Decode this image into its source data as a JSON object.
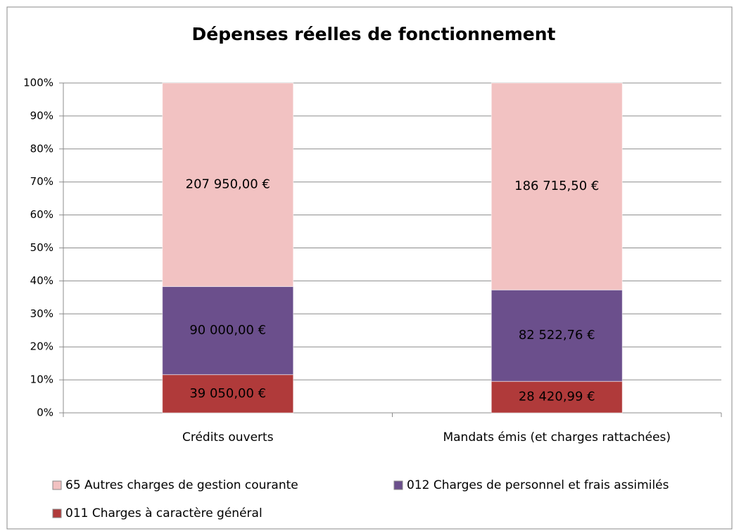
{
  "chart_data": {
    "type": "bar",
    "stacking": "percent",
    "title": "Dépenses réelles de fonctionnement",
    "categories": [
      "Crédits ouverts",
      "Mandats émis (et charges rattachées)"
    ],
    "series": [
      {
        "name": "011 Charges à caractère général",
        "color": "#b03a3a",
        "values": [
          39050.0,
          28420.99
        ],
        "value_labels": [
          "39 050,00 €",
          "28 420,99 €"
        ]
      },
      {
        "name": "012 Charges de personnel et frais assimilés",
        "color": "#6b4f8c",
        "values": [
          90000.0,
          82522.76
        ],
        "value_labels": [
          "90 000,00 €",
          "82 522,76 €"
        ]
      },
      {
        "name": "65 Autres charges de gestion courante",
        "color": "#f2c2c2",
        "values": [
          207950.0,
          186715.5
        ],
        "value_labels": [
          "207 950,00 €",
          "186 715,50 €"
        ]
      }
    ],
    "ylim": [
      0,
      100
    ],
    "yticks": [
      {
        "value": 0,
        "label": "0%"
      },
      {
        "value": 10,
        "label": "10%"
      },
      {
        "value": 20,
        "label": "20%"
      },
      {
        "value": 30,
        "label": "30%"
      },
      {
        "value": 40,
        "label": "40%"
      },
      {
        "value": 50,
        "label": "50%"
      },
      {
        "value": 60,
        "label": "60%"
      },
      {
        "value": 70,
        "label": "70%"
      },
      {
        "value": 80,
        "label": "80%"
      },
      {
        "value": 90,
        "label": "90%"
      },
      {
        "value": 100,
        "label": "100%"
      }
    ],
    "grid": true,
    "legend": "bottom"
  }
}
